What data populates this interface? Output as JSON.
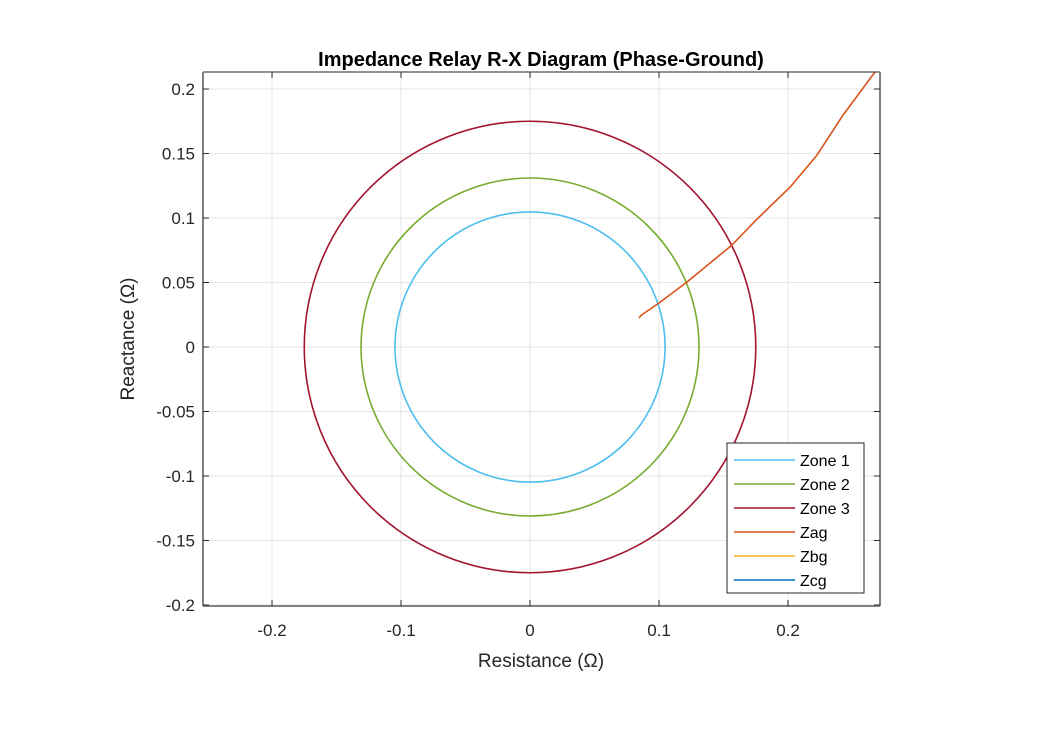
{
  "chart_data": {
    "type": "line",
    "title": "Impedance Relay R-X Diagram (Phase-Ground)",
    "xlabel": "Resistance (Ω)",
    "ylabel": "Reactance (Ω)",
    "xlim": [
      -0.2535,
      0.2713
    ],
    "ylim": [
      -0.2008,
      0.2132
    ],
    "grid": true,
    "aspect": "equal",
    "xticks": [
      -0.2,
      -0.1,
      0,
      0.1,
      0.2
    ],
    "xtick_labels": [
      "-0.2",
      "-0.1",
      "0",
      "0.1",
      "0.2"
    ],
    "yticks": [
      0.2,
      0.15,
      0.1,
      0.05,
      0,
      -0.05,
      -0.1,
      -0.15,
      -0.2
    ],
    "ytick_labels": [
      "0.2",
      "0.15",
      "0.1",
      "0.05",
      "0",
      "-0.05",
      "-0.1",
      "-0.15",
      "-0.2"
    ],
    "legend_position": "bottom-right",
    "series": [
      {
        "name": "Zone 1",
        "kind": "circle",
        "center": [
          0,
          0
        ],
        "radius": 0.1047,
        "color": "#4DBEEE"
      },
      {
        "name": "Zone 2",
        "kind": "circle",
        "center": [
          0,
          0
        ],
        "radius": 0.131,
        "color": "#77AC30"
      },
      {
        "name": "Zone 3",
        "kind": "circle",
        "center": [
          0,
          0
        ],
        "radius": 0.175,
        "color": "#A2142F"
      },
      {
        "name": "Zag",
        "kind": "line",
        "color": "#D95319",
        "x": [
          0.0845,
          0.086,
          0.1,
          0.1217,
          0.1566,
          0.1752,
          0.2016,
          0.2225,
          0.2426,
          0.2674
        ],
        "y": [
          0.0225,
          0.0245,
          0.0341,
          0.0504,
          0.0791,
          0.0984,
          0.124,
          0.1488,
          0.1798,
          0.2132
        ]
      },
      {
        "name": "Zbg",
        "kind": "line",
        "color": "#EDB120",
        "x": [],
        "y": []
      },
      {
        "name": "Zcg",
        "kind": "line",
        "color": "#0072BD",
        "x": [],
        "y": []
      }
    ]
  }
}
